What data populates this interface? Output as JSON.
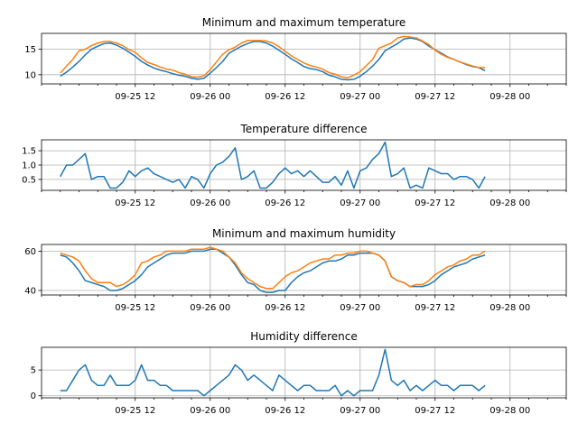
{
  "chart_data": [
    {
      "type": "line",
      "title": "Minimum and maximum temperature",
      "xlabel": "",
      "ylabel": "",
      "grid": true,
      "x_start": "2023-09-25 00:00",
      "x_step_hours": 3,
      "x_ticks": [
        "09-25 12",
        "09-26 00",
        "09-26 12",
        "09-27 00",
        "09-27 12",
        "09-28 00"
      ],
      "y_ticks": [
        10,
        15
      ],
      "ylim": [
        8.2,
        18.1
      ],
      "series": [
        {
          "name": "",
          "color": "#1f77b4",
          "values": [
            9.7,
            10.5,
            11.5,
            12.6,
            13.9,
            15.0,
            15.6,
            16.1,
            16.2,
            15.8,
            15.2,
            14.4,
            13.6,
            12.6,
            11.9,
            11.3,
            10.9,
            10.6,
            10.2,
            9.9,
            9.7,
            9.3,
            9.1,
            9.3,
            10.3,
            11.4,
            12.6,
            14.2,
            14.9,
            15.6,
            16.1,
            16.5,
            16.5,
            16.2,
            15.6,
            14.8,
            14.0,
            13.1,
            12.4,
            11.6,
            11.2,
            11.0,
            10.6,
            9.9,
            9.6,
            9.1,
            9.0,
            9.1,
            9.7,
            10.6,
            11.7,
            13.0,
            14.7,
            15.4,
            16.1,
            17.0,
            17.2,
            17.0,
            16.5,
            15.6,
            14.9,
            14.2,
            13.5,
            13.0,
            12.5,
            12.0,
            11.6,
            11.4,
            10.8
          ]
        },
        {
          "name": "",
          "color": "#ff7f0e",
          "values": [
            10.3,
            11.7,
            13.0,
            14.7,
            15.0,
            15.7,
            16.2,
            16.5,
            16.5,
            16.2,
            15.7,
            14.9,
            14.4,
            13.3,
            12.4,
            12.0,
            11.5,
            11.1,
            10.9,
            10.4,
            10.1,
            9.6,
            9.5,
            9.8,
            11.0,
            12.5,
            14.0,
            14.9,
            15.4,
            16.2,
            16.7,
            16.7,
            16.7,
            16.6,
            16.2,
            15.5,
            14.6,
            13.7,
            13.0,
            12.3,
            11.8,
            11.5,
            11.1,
            10.4,
            10.1,
            9.6,
            9.4,
            9.9,
            10.6,
            11.8,
            13.0,
            15.2,
            15.7,
            16.2,
            17.2,
            17.5,
            17.4,
            17.2,
            16.6,
            15.9,
            14.8,
            14.0,
            13.4,
            13.0,
            12.5,
            12.1,
            11.7,
            11.4,
            11.4
          ]
        }
      ]
    },
    {
      "type": "line",
      "title": "Temperature difference",
      "xlabel": "",
      "ylabel": "",
      "grid": true,
      "x_start": "2023-09-25 00:00",
      "x_step_hours": 3,
      "x_ticks": [
        "09-25 12",
        "09-26 00",
        "09-26 12",
        "09-27 00",
        "09-27 12",
        "09-28 00"
      ],
      "y_ticks": [
        0.5,
        1.0,
        1.5
      ],
      "ylim": [
        0.12,
        1.88
      ],
      "series": [
        {
          "name": "",
          "color": "#1f77b4",
          "values": [
            0.6,
            1.0,
            1.0,
            1.2,
            1.4,
            0.5,
            0.6,
            0.6,
            0.2,
            0.2,
            0.4,
            0.8,
            0.6,
            0.8,
            0.9,
            0.7,
            0.6,
            0.5,
            0.4,
            0.5,
            0.2,
            0.6,
            0.5,
            0.2,
            0.7,
            1.0,
            1.1,
            1.3,
            1.6,
            0.5,
            0.6,
            0.8,
            0.2,
            0.2,
            0.4,
            0.7,
            0.9,
            0.7,
            0.8,
            0.6,
            0.8,
            0.6,
            0.4,
            0.4,
            0.6,
            0.3,
            0.8,
            0.2,
            0.8,
            0.9,
            1.2,
            1.4,
            1.8,
            0.6,
            0.7,
            0.9,
            0.2,
            0.3,
            0.2,
            0.9,
            0.8,
            0.7,
            0.7,
            0.5,
            0.6,
            0.6,
            0.5,
            0.2,
            0.6
          ]
        }
      ]
    },
    {
      "type": "line",
      "title": "Minimum and maximum humidity",
      "xlabel": "",
      "ylabel": "",
      "grid": true,
      "x_start": "2023-09-25 00:00",
      "x_step_hours": 3,
      "x_ticks": [
        "09-25 12",
        "09-26 00",
        "09-26 12",
        "09-27 00",
        "09-27 12",
        "09-28 00"
      ],
      "y_ticks": [
        40,
        60
      ],
      "ylim": [
        37.7,
        63.4
      ],
      "series": [
        {
          "name": "",
          "color": "#1f77b4",
          "values": [
            58,
            57,
            54,
            50,
            45,
            44,
            43,
            42,
            40,
            40,
            41,
            43,
            45,
            48,
            52,
            54,
            56,
            58,
            59,
            59,
            59,
            60,
            60,
            60,
            61,
            61,
            59,
            57,
            53,
            48,
            44,
            43,
            40,
            39,
            39,
            40,
            40,
            44,
            47,
            49,
            50,
            52,
            54,
            55,
            55,
            56,
            58,
            58,
            59,
            59,
            59,
            58,
            55,
            47,
            45,
            44,
            42,
            42,
            42,
            43,
            45,
            48,
            50,
            52,
            53,
            54,
            56,
            57,
            58
          ]
        },
        {
          "name": "",
          "color": "#ff7f0e",
          "values": [
            59,
            58,
            57,
            55,
            50,
            46,
            44,
            44,
            44,
            42,
            43,
            45,
            48,
            54,
            55,
            57,
            58,
            60,
            60,
            60,
            60,
            61,
            61,
            61,
            62,
            61,
            60,
            57,
            54,
            49,
            46,
            44,
            42,
            41,
            41,
            44,
            47,
            49,
            50,
            52,
            54,
            55,
            56,
            56,
            58,
            58,
            59,
            59,
            60,
            60,
            59,
            58,
            55,
            47,
            45,
            44,
            42,
            43,
            43,
            45,
            48,
            50,
            52,
            53,
            55,
            56,
            58,
            58,
            60
          ]
        }
      ]
    },
    {
      "type": "line",
      "title": "Humidity difference",
      "xlabel": "",
      "ylabel": "",
      "grid": true,
      "x_start": "2023-09-25 00:00",
      "x_step_hours": 3,
      "x_ticks": [
        "09-25 12",
        "09-26 00",
        "09-26 12",
        "09-27 00",
        "09-27 12",
        "09-28 00"
      ],
      "y_ticks": [
        0,
        5
      ],
      "ylim": [
        -0.4,
        9.4
      ],
      "series": [
        {
          "name": "",
          "color": "#1f77b4",
          "values": [
            1,
            1,
            3,
            5,
            6,
            3,
            2,
            2,
            4,
            2,
            2,
            2,
            3,
            6,
            3,
            3,
            2,
            2,
            1,
            1,
            1,
            1,
            1,
            0,
            1,
            2,
            3,
            4,
            6,
            5,
            3,
            4,
            3,
            2,
            1,
            4,
            3,
            2,
            1,
            2,
            2,
            1,
            1,
            1,
            2,
            0,
            1,
            0,
            1,
            1,
            1,
            4,
            9,
            3,
            2,
            3,
            1,
            2,
            1,
            2,
            3,
            2,
            2,
            1,
            2,
            2,
            2,
            1,
            2
          ]
        }
      ]
    }
  ]
}
